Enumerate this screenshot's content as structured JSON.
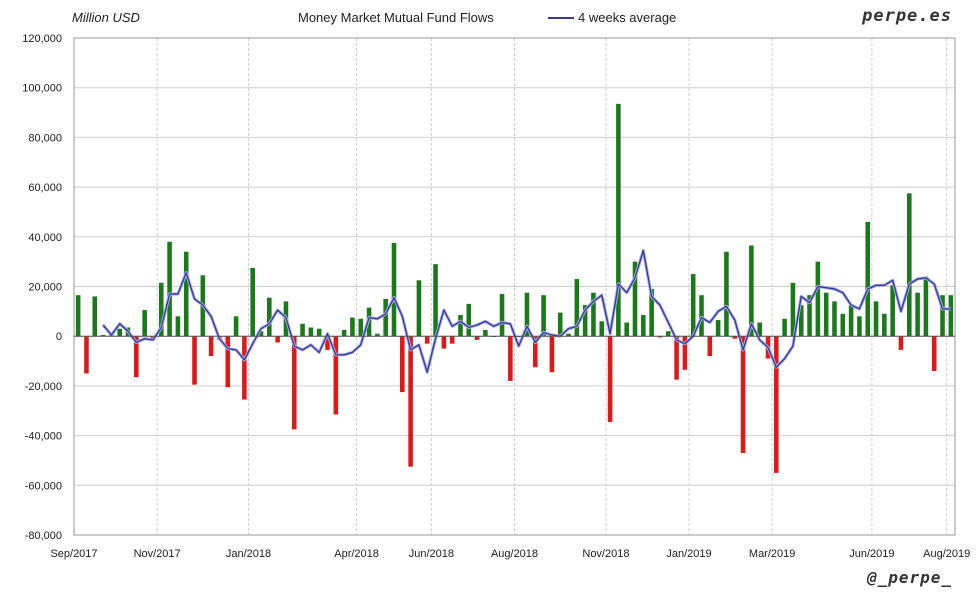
{
  "header": {
    "unit_label": "Million USD",
    "title": "Money Market Mutual Fund Flows",
    "legend_label": "4 weeks average",
    "brand": "perpe.es"
  },
  "footer": {
    "handle": "@_perpe_"
  },
  "colors": {
    "positive": "#1a7a1a",
    "negative": "#e01818",
    "average": "#3b3b9a",
    "grid": "#cfcfcf"
  },
  "chart_data": {
    "type": "bar",
    "title": "Money Market Mutual Fund Flows",
    "ylabel": "Million USD",
    "ylim": [
      -80000,
      120000
    ],
    "y_ticks": [
      -80000,
      -60000,
      -40000,
      -20000,
      0,
      20000,
      40000,
      60000,
      80000,
      100000,
      120000
    ],
    "y_tick_labels": [
      "-80,000",
      "-60,000",
      "-40,000",
      "-20,000",
      "0",
      "20,000",
      "40,000",
      "60,000",
      "80,000",
      "100,000",
      "120,000"
    ],
    "x_tick_labels": [
      "Sep/2017",
      "Nov/2017",
      "Jan/2018",
      "Apr/2018",
      "Jun/2018",
      "Aug/2018",
      "Nov/2018",
      "Jan/2019",
      "Mar/2019",
      "Jun/2019",
      "Aug/2019"
    ],
    "x_tick_weeks": [
      0,
      10,
      21,
      34,
      43,
      53,
      64,
      74,
      84,
      96,
      105
    ],
    "grid": true,
    "legend": "top",
    "series": [
      {
        "name": "Weekly flows",
        "values": [
          16500,
          -15000,
          16000,
          500,
          800,
          3000,
          3500,
          -16500,
          10500,
          -1000,
          21500,
          38000,
          8000,
          34000,
          -19500,
          24500,
          -8000,
          -1500,
          -20500,
          8000,
          -25500,
          27500,
          2000,
          15500,
          -2500,
          14000,
          -37500,
          5000,
          3500,
          3000,
          -5500,
          -31500,
          2500,
          7500,
          7000,
          11500,
          1000,
          15000,
          37500,
          -22500,
          -52500,
          22500,
          -3000,
          29000,
          -5000,
          -3000,
          8500,
          13000,
          -1500,
          2500,
          0,
          17000,
          -18000,
          0,
          17500,
          -12500,
          16500,
          -14500,
          9500,
          1000,
          23000,
          12500,
          17500,
          6000,
          -34500,
          93500,
          5500,
          30000,
          8500,
          19000,
          -500,
          2000,
          -17500,
          -13500,
          25000,
          16500,
          -8000,
          6500,
          34000,
          -1000,
          -47000,
          36500,
          5500,
          -9000,
          -55000,
          7000,
          21500,
          12500,
          16500,
          30000,
          17500,
          14000,
          9000,
          12500,
          8000,
          46000,
          14000,
          9000,
          20500,
          -5500,
          57500,
          17500,
          24000,
          -14000,
          16500,
          16500
        ]
      },
      {
        "name": "4 weeks average",
        "values": [
          null,
          null,
          null,
          4500,
          500,
          5000,
          2000,
          -2500,
          -1000,
          -1500,
          3500,
          17000,
          17000,
          25500,
          15000,
          12500,
          8000,
          -1000,
          -5000,
          -5500,
          -9500,
          -3000,
          3000,
          5000,
          10500,
          7500,
          -4000,
          -5500,
          -3500,
          -6500,
          1000,
          -7500,
          -7500,
          -6500,
          -3500,
          7500,
          7000,
          9000,
          15500,
          8000,
          -5500,
          -3500,
          -14500,
          -1000,
          10500,
          4000,
          6000,
          3500,
          4500,
          6000,
          4000,
          5500,
          5000,
          -4000,
          4000,
          -2500,
          1500,
          500,
          0,
          3000,
          4000,
          10500,
          14000,
          16500,
          1000,
          21000,
          17500,
          23500,
          34500,
          16000,
          12500,
          5500,
          -1500,
          -3000,
          0,
          7500,
          5500,
          10000,
          12000,
          6500,
          -5500,
          5000,
          -1500,
          -4500,
          -12500,
          -9000,
          -4000,
          16000,
          13500,
          20000,
          19500,
          19000,
          17500,
          12500,
          11000,
          19000,
          20500,
          20500,
          22500,
          10000,
          21000,
          23000,
          23500,
          21000,
          11000,
          11000
        ]
      }
    ]
  }
}
